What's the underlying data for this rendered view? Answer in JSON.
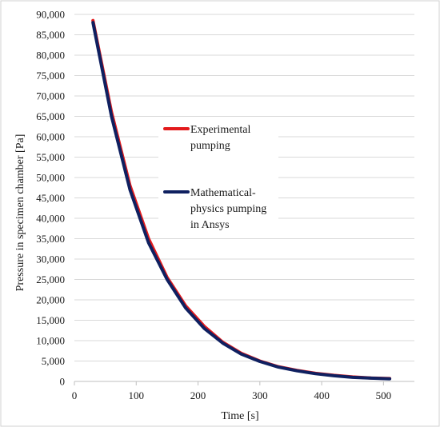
{
  "chart_data": {
    "type": "line",
    "xlabel": "Time [s]",
    "ylabel": "Pressure in specimen chamber [Pa]",
    "xlim": [
      0,
      550
    ],
    "ylim": [
      0,
      90000
    ],
    "xticks": [
      0,
      100,
      200,
      300,
      400,
      500
    ],
    "yticks": [
      0,
      5000,
      10000,
      15000,
      20000,
      25000,
      30000,
      35000,
      40000,
      45000,
      50000,
      55000,
      60000,
      65000,
      70000,
      75000,
      80000,
      85000,
      90000
    ],
    "xtick_labels": [
      "0",
      "100",
      "200",
      "300",
      "400",
      "500"
    ],
    "ytick_labels": [
      "0",
      "5,000",
      "10,000",
      "15,000",
      "20,000",
      "25,000",
      "30,000",
      "35,000",
      "40,000",
      "45,000",
      "50,000",
      "55,000",
      "60,000",
      "65,000",
      "70,000",
      "75,000",
      "80,000",
      "85,000",
      "90,000"
    ],
    "grid": "horizontal",
    "legend_position": "center",
    "series": [
      {
        "name": "Experimental pumping",
        "legend_lines": [
          "Experimental",
          "pumping"
        ],
        "color": "#e31a1c",
        "x": [
          30,
          60,
          90,
          120,
          150,
          180,
          210,
          240,
          270,
          300,
          330,
          360,
          390,
          420,
          450,
          480,
          510
        ],
        "y": [
          88500,
          66000,
          48000,
          35000,
          25500,
          18500,
          13500,
          9600,
          6900,
          5000,
          3600,
          2700,
          2000,
          1500,
          1100,
          850,
          700
        ]
      },
      {
        "name": "Mathematical-physics pumping in Ansys",
        "legend_lines": [
          "Mathematical-",
          "physics pumping",
          "in Ansys"
        ],
        "color": "#0f2060",
        "x": [
          30,
          60,
          90,
          120,
          150,
          180,
          210,
          240,
          270,
          300,
          330,
          360,
          390,
          420,
          450,
          480,
          510
        ],
        "y": [
          88000,
          65000,
          47000,
          34000,
          25000,
          18000,
          13000,
          9400,
          6700,
          4900,
          3500,
          2600,
          1900,
          1400,
          1000,
          800,
          650
        ]
      }
    ]
  }
}
